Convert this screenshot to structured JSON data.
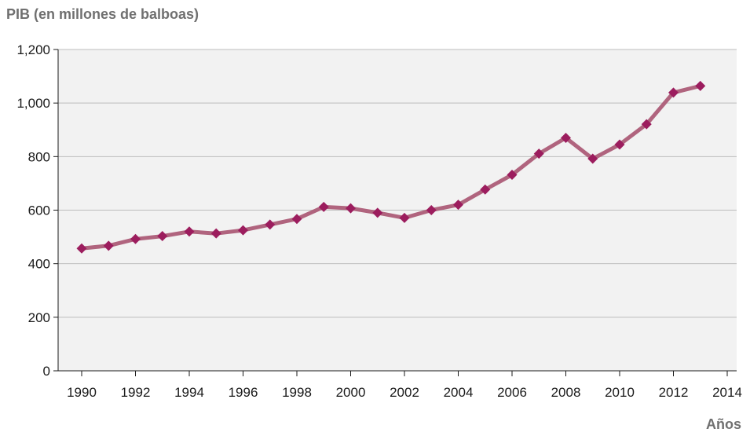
{
  "chart_data": {
    "type": "line",
    "title": "PIB (en millones de balboas)",
    "xlabel": "Años",
    "ylabel": "",
    "ylim": [
      0,
      1200
    ],
    "xlim": [
      1990,
      2014
    ],
    "y_ticks": [
      "0",
      "200",
      "400",
      "600",
      "800",
      "1,000",
      "1,200"
    ],
    "y_tick_values": [
      0,
      200,
      400,
      600,
      800,
      1000,
      1200
    ],
    "x_ticks": [
      "1990",
      "1992",
      "1994",
      "1996",
      "1998",
      "2000",
      "2002",
      "2004",
      "2006",
      "2008",
      "2010",
      "2012",
      "2014"
    ],
    "x_tick_values": [
      1990,
      1992,
      1994,
      1996,
      1998,
      2000,
      2002,
      2004,
      2006,
      2008,
      2010,
      2012,
      2014
    ],
    "grid": true,
    "series": [
      {
        "x": [
          1990,
          1991,
          1992,
          1993,
          1994,
          1995,
          1996,
          1997,
          1998,
          1999,
          2000,
          2001,
          2002,
          2003,
          2004,
          2005,
          2006,
          2007,
          2008,
          2009,
          2010,
          2011,
          2012,
          2013
        ],
        "values": [
          457,
          467,
          492,
          503,
          520,
          513,
          525,
          546,
          567,
          612,
          607,
          590,
          571,
          600,
          620,
          677,
          732,
          811,
          870,
          792,
          845,
          921,
          1039,
          1064
        ]
      }
    ],
    "colors": {
      "line": "#b0647e",
      "marker": "#9c1d5e",
      "plot_bg": "#f2f2f2",
      "grid": "#bdbdbd",
      "axis": "#1a1a1a"
    }
  }
}
